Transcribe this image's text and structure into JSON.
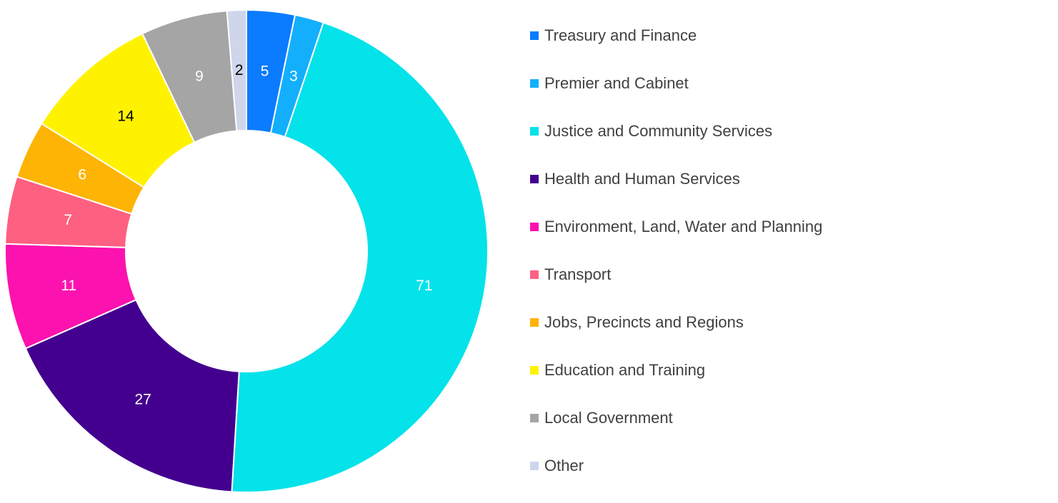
{
  "chart_data": {
    "type": "pie",
    "variant": "donut",
    "legend_position": "right",
    "series": [
      {
        "name": "Treasury and Finance",
        "value": 5,
        "color": "#0B7BFF",
        "label_color": "#FFFFFF"
      },
      {
        "name": "Premier and Cabinet",
        "value": 3,
        "color": "#13AFFD",
        "label_color": "#FFFFFF"
      },
      {
        "name": "Justice and Community Services",
        "value": 71,
        "color": "#04E2EA",
        "label_color": "#FFFFFF"
      },
      {
        "name": "Health and Human Services",
        "value": 27,
        "color": "#43008F",
        "label_color": "#FFFFFF"
      },
      {
        "name": "Environment, Land, Water and Planning",
        "value": 11,
        "color": "#FC12AE",
        "label_color": "#FFFFFF"
      },
      {
        "name": "Transport",
        "value": 7,
        "color": "#FE6081",
        "label_color": "#FFFFFF"
      },
      {
        "name": "Jobs, Precincts and Regions",
        "value": 6,
        "color": "#FEB404",
        "label_color": "#FFFFFF"
      },
      {
        "name": "Education and Training",
        "value": 14,
        "color": "#FFF200",
        "label_color": "#000000"
      },
      {
        "name": "Local Government",
        "value": 9,
        "color": "#A5A5A6",
        "label_color": "#FFFFFF"
      },
      {
        "name": "Other",
        "value": 2,
        "color": "#CFD6EB",
        "label_color": "#000000"
      }
    ]
  }
}
